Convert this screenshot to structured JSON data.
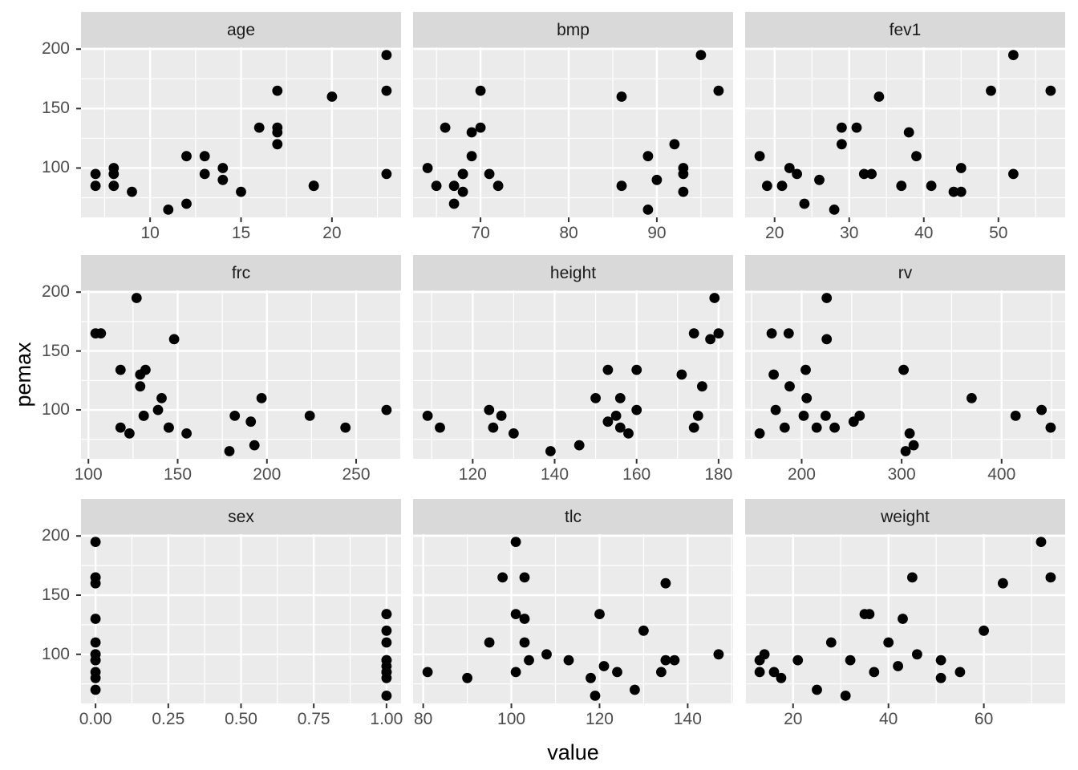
{
  "chart_data": {
    "type": "scatter",
    "title": "",
    "xlabel": "value",
    "ylabel": "pemax",
    "grid": "on",
    "legend": "none",
    "facet_layout": "3x3 grid, shared y axis",
    "colors": {
      "panel_bg": "#EBEBEB",
      "strip_bg": "#D9D9D9",
      "strip_text": "#1A1A1A",
      "gridline": "#FFFFFF",
      "point": "#000000",
      "axis_text": "#4D4D4D",
      "tick_mark": "#333333",
      "axis_title": "#000000",
      "background": "#FFFFFF"
    },
    "y_axis": {
      "lim": [
        58.5,
        201.5
      ],
      "major_ticks": [
        100,
        150,
        200
      ],
      "tick_labels": [
        "100",
        "150",
        "200"
      ],
      "minor_ticks": [
        75,
        125,
        175
      ]
    },
    "facets": [
      {
        "label": "age",
        "xlim": [
          6.2,
          23.8
        ],
        "x_major": [
          10,
          15,
          20
        ],
        "x_tick_labels": [
          "10",
          "15",
          "20"
        ],
        "x_minor": [
          7.5,
          12.5,
          17.5,
          22.5
        ],
        "points": [
          [
            7,
            95
          ],
          [
            7,
            85
          ],
          [
            8,
            100
          ],
          [
            8,
            95
          ],
          [
            8,
            85
          ],
          [
            9,
            80
          ],
          [
            11,
            65
          ],
          [
            12,
            110
          ],
          [
            12,
            70
          ],
          [
            13,
            110
          ],
          [
            13,
            95
          ],
          [
            14,
            100
          ],
          [
            14,
            90
          ],
          [
            15,
            80
          ],
          [
            16,
            134
          ],
          [
            17,
            165
          ],
          [
            17,
            134
          ],
          [
            17,
            130
          ],
          [
            17,
            120
          ],
          [
            19,
            85
          ],
          [
            19,
            85
          ],
          [
            20,
            160
          ],
          [
            23,
            195
          ],
          [
            23,
            165
          ],
          [
            23,
            95
          ]
        ]
      },
      {
        "label": "bmp",
        "xlim": [
          62.35,
          98.65
        ],
        "x_major": [
          70,
          80,
          90
        ],
        "x_tick_labels": [
          "70",
          "80",
          "90"
        ],
        "x_minor": [
          65,
          75,
          85,
          95
        ],
        "points": [
          [
            64,
            100
          ],
          [
            65,
            85
          ],
          [
            66,
            134
          ],
          [
            67,
            85
          ],
          [
            67,
            70
          ],
          [
            68,
            95
          ],
          [
            68,
            95
          ],
          [
            68,
            80
          ],
          [
            69,
            130
          ],
          [
            69,
            110
          ],
          [
            70,
            165
          ],
          [
            70,
            134
          ],
          [
            71,
            95
          ],
          [
            72,
            85
          ],
          [
            86,
            160
          ],
          [
            86,
            85
          ],
          [
            89,
            110
          ],
          [
            89,
            65
          ],
          [
            90,
            90
          ],
          [
            92,
            120
          ],
          [
            93,
            100
          ],
          [
            93,
            95
          ],
          [
            93,
            80
          ],
          [
            95,
            195
          ],
          [
            97,
            165
          ]
        ]
      },
      {
        "label": "fev1",
        "xlim": [
          16.05,
          58.95
        ],
        "x_major": [
          20,
          30,
          40,
          50
        ],
        "x_tick_labels": [
          "20",
          "30",
          "40",
          "50"
        ],
        "x_minor": [
          25,
          35,
          45,
          55
        ],
        "points": [
          [
            18,
            110
          ],
          [
            19,
            85
          ],
          [
            21,
            85
          ],
          [
            22,
            100
          ],
          [
            23,
            95
          ],
          [
            24,
            70
          ],
          [
            26,
            90
          ],
          [
            28,
            65
          ],
          [
            29,
            134
          ],
          [
            29,
            120
          ],
          [
            31,
            134
          ],
          [
            32,
            95
          ],
          [
            33,
            95
          ],
          [
            34,
            160
          ],
          [
            37,
            85
          ],
          [
            38,
            130
          ],
          [
            39,
            110
          ],
          [
            41,
            85
          ],
          [
            44,
            80
          ],
          [
            45,
            100
          ],
          [
            45,
            80
          ],
          [
            49,
            165
          ],
          [
            52,
            195
          ],
          [
            52,
            95
          ],
          [
            57,
            165
          ]
        ]
      },
      {
        "label": "frc",
        "xlim": [
          95.85,
          275.15
        ],
        "x_major": [
          100,
          150,
          200,
          250
        ],
        "x_tick_labels": [
          "100",
          "150",
          "200",
          "250"
        ],
        "x_minor": [
          125,
          175,
          225,
          275
        ],
        "points": [
          [
            104,
            165
          ],
          [
            107,
            165
          ],
          [
            118,
            134
          ],
          [
            118,
            85
          ],
          [
            123,
            80
          ],
          [
            127,
            195
          ],
          [
            129,
            130
          ],
          [
            129,
            120
          ],
          [
            131,
            95
          ],
          [
            131,
            95
          ],
          [
            132,
            134
          ],
          [
            139,
            100
          ],
          [
            141,
            110
          ],
          [
            145,
            85
          ],
          [
            145,
            85
          ],
          [
            148,
            160
          ],
          [
            155,
            80
          ],
          [
            179,
            65
          ],
          [
            182,
            95
          ],
          [
            191,
            90
          ],
          [
            193,
            70
          ],
          [
            197,
            110
          ],
          [
            224,
            95
          ],
          [
            244,
            85
          ],
          [
            267,
            100
          ]
        ]
      },
      {
        "label": "height",
        "xlim": [
          105.45,
          183.55
        ],
        "x_major": [
          120,
          140,
          160,
          180
        ],
        "x_tick_labels": [
          "120",
          "140",
          "160",
          "180"
        ],
        "x_minor": [
          110,
          130,
          150,
          170
        ],
        "points": [
          [
            109,
            95
          ],
          [
            112,
            85
          ],
          [
            124,
            100
          ],
          [
            125,
            85
          ],
          [
            127,
            95
          ],
          [
            130,
            80
          ],
          [
            139,
            65
          ],
          [
            146,
            70
          ],
          [
            150,
            110
          ],
          [
            153,
            134
          ],
          [
            153,
            90
          ],
          [
            155,
            95
          ],
          [
            156,
            110
          ],
          [
            156,
            85
          ],
          [
            158,
            80
          ],
          [
            160,
            134
          ],
          [
            160,
            100
          ],
          [
            171,
            130
          ],
          [
            174,
            165
          ],
          [
            174,
            85
          ],
          [
            175,
            95
          ],
          [
            176,
            120
          ],
          [
            178,
            160
          ],
          [
            179,
            195
          ],
          [
            180,
            165
          ]
        ]
      },
      {
        "label": "rv",
        "xlim": [
          143.45,
          463.55
        ],
        "x_major": [
          200,
          300,
          400
        ],
        "x_tick_labels": [
          "200",
          "300",
          "400"
        ],
        "x_minor": [
          150,
          250,
          350,
          450
        ],
        "points": [
          [
            158,
            80
          ],
          [
            170,
            165
          ],
          [
            172,
            130
          ],
          [
            174,
            100
          ],
          [
            183,
            85
          ],
          [
            187,
            165
          ],
          [
            188,
            120
          ],
          [
            202,
            95
          ],
          [
            204,
            134
          ],
          [
            205,
            110
          ],
          [
            215,
            85
          ],
          [
            224,
            95
          ],
          [
            225,
            195
          ],
          [
            225,
            160
          ],
          [
            233,
            85
          ],
          [
            252,
            90
          ],
          [
            258,
            95
          ],
          [
            302,
            134
          ],
          [
            304,
            65
          ],
          [
            308,
            80
          ],
          [
            312,
            70
          ],
          [
            370,
            110
          ],
          [
            414,
            95
          ],
          [
            440,
            100
          ],
          [
            449,
            85
          ]
        ]
      },
      {
        "label": "sex",
        "xlim": [
          -0.05,
          1.05
        ],
        "x_major": [
          0,
          0.25,
          0.5,
          0.75,
          1
        ],
        "x_tick_labels": [
          "0.00",
          "0.25",
          "0.50",
          "0.75",
          "1.00"
        ],
        "x_minor": [
          0.125,
          0.375,
          0.625,
          0.875
        ],
        "points": [
          [
            0,
            195
          ],
          [
            0,
            165
          ],
          [
            0,
            165
          ],
          [
            0,
            160
          ],
          [
            0,
            130
          ],
          [
            0,
            110
          ],
          [
            0,
            100
          ],
          [
            0,
            100
          ],
          [
            0,
            95
          ],
          [
            0,
            95
          ],
          [
            0,
            85
          ],
          [
            0,
            80
          ],
          [
            0,
            70
          ],
          [
            1,
            134
          ],
          [
            1,
            134
          ],
          [
            1,
            120
          ],
          [
            1,
            110
          ],
          [
            1,
            95
          ],
          [
            1,
            95
          ],
          [
            1,
            90
          ],
          [
            1,
            85
          ],
          [
            1,
            85
          ],
          [
            1,
            85
          ],
          [
            1,
            80
          ],
          [
            1,
            65
          ]
        ]
      },
      {
        "label": "tlc",
        "xlim": [
          77.7,
          150.3
        ],
        "x_major": [
          80,
          100,
          120,
          140
        ],
        "x_tick_labels": [
          "80",
          "100",
          "120",
          "140"
        ],
        "x_minor": [
          90,
          110,
          130,
          150
        ],
        "points": [
          [
            81,
            85
          ],
          [
            90,
            80
          ],
          [
            95,
            110
          ],
          [
            98,
            165
          ],
          [
            101,
            195
          ],
          [
            101,
            134
          ],
          [
            101,
            85
          ],
          [
            103,
            165
          ],
          [
            103,
            130
          ],
          [
            103,
            110
          ],
          [
            104,
            95
          ],
          [
            108,
            100
          ],
          [
            113,
            95
          ],
          [
            118,
            80
          ],
          [
            119,
            65
          ],
          [
            120,
            134
          ],
          [
            121,
            90
          ],
          [
            124,
            85
          ],
          [
            128,
            70
          ],
          [
            130,
            120
          ],
          [
            134,
            85
          ],
          [
            135,
            160
          ],
          [
            135,
            95
          ],
          [
            137,
            95
          ],
          [
            147,
            100
          ]
        ]
      },
      {
        "label": "weight",
        "xlim": [
          9.95,
          77.05
        ],
        "x_major": [
          20,
          40,
          60
        ],
        "x_tick_labels": [
          "20",
          "40",
          "60"
        ],
        "x_minor": [
          10,
          30,
          50,
          70
        ],
        "points": [
          [
            13,
            95
          ],
          [
            13,
            85
          ],
          [
            14,
            100
          ],
          [
            16,
            85
          ],
          [
            17.5,
            80
          ],
          [
            21,
            95
          ],
          [
            25,
            70
          ],
          [
            28,
            110
          ],
          [
            31,
            65
          ],
          [
            32,
            95
          ],
          [
            35,
            134
          ],
          [
            36,
            134
          ],
          [
            37,
            85
          ],
          [
            40,
            110
          ],
          [
            42,
            90
          ],
          [
            43,
            130
          ],
          [
            45,
            165
          ],
          [
            46,
            100
          ],
          [
            51,
            95
          ],
          [
            51,
            80
          ],
          [
            55,
            85
          ],
          [
            60,
            120
          ],
          [
            64,
            160
          ],
          [
            72,
            195
          ],
          [
            74,
            165
          ]
        ]
      }
    ]
  }
}
